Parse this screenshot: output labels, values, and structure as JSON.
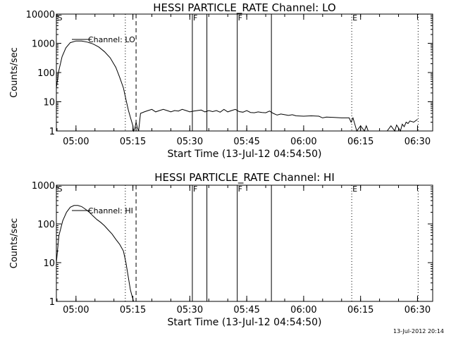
{
  "footer": {
    "timestamp": "13-Jul-2012 20:14"
  },
  "chart_data": [
    {
      "type": "line",
      "title": "HESSI PARTICLE_RATE Channel: LO",
      "xlabel": "Start Time (13-Jul-12 04:54:50)",
      "ylabel": "Counts/sec",
      "yscale": "log",
      "xlim": [
        "04:54:50",
        "06:34:00"
      ],
      "ylim": [
        1,
        10000
      ],
      "x_ticks": [
        "05:00",
        "05:15",
        "05:30",
        "05:45",
        "06:00",
        "06:15",
        "06:30"
      ],
      "y_ticks": [
        "1",
        "10",
        "100",
        "1000",
        "10000"
      ],
      "legend": {
        "position": "top-left",
        "entries": [
          "Channel: LO"
        ]
      },
      "markers": [
        {
          "time": "04:54:55",
          "label": "S",
          "style": "none"
        },
        {
          "time": "05:13:00",
          "label": "",
          "style": "dotted"
        },
        {
          "time": "05:15:50",
          "label": "",
          "style": "dashed"
        },
        {
          "time": "05:30:40",
          "label": "F",
          "style": "solid"
        },
        {
          "time": "05:34:30",
          "label": "",
          "style": "solid"
        },
        {
          "time": "05:42:30",
          "label": "F",
          "style": "solid"
        },
        {
          "time": "05:51:30",
          "label": "",
          "style": "solid"
        },
        {
          "time": "06:12:40",
          "label": "E",
          "style": "dotted"
        },
        {
          "time": "06:30:10",
          "label": "",
          "style": "dotted"
        }
      ],
      "series": [
        {
          "x": [
            "04:54:50",
            "04:55:30",
            "04:56:20",
            "04:57:20",
            "04:58:30",
            "05:00:00",
            "05:01:30",
            "05:03:00",
            "05:04:30",
            "05:06:00",
            "05:07:30",
            "05:09:00",
            "05:10:30",
            "05:11:30",
            "05:12:30",
            "05:13:10",
            "05:13:50",
            "05:14:30",
            "05:15:00",
            "05:15:10",
            "05:15:30",
            "05:15:50",
            "05:16:10",
            "05:16:30",
            "05:17:00",
            "05:18:00",
            "05:19:00",
            "05:20:00",
            "05:21:00",
            "05:22:00",
            "05:23:00",
            "05:24:00",
            "05:25:00",
            "05:26:00",
            "05:27:00",
            "05:28:00",
            "05:29:00",
            "05:30:00",
            "05:31:00",
            "05:32:00",
            "05:33:00",
            "05:34:00",
            "05:35:00",
            "05:36:00",
            "05:37:00",
            "05:38:00",
            "05:39:00",
            "05:40:00",
            "05:41:00",
            "05:42:00",
            "05:43:00",
            "05:44:00",
            "05:45:00",
            "05:46:00",
            "05:47:00",
            "05:48:00",
            "05:49:00",
            "05:50:00",
            "05:51:00",
            "05:52:00",
            "05:53:00",
            "05:54:00",
            "05:55:00",
            "05:56:00",
            "05:57:00",
            "05:58:00",
            "06:00:00",
            "06:02:00",
            "06:04:00",
            "06:05:00",
            "06:06:00",
            "06:08:00",
            "06:10:00",
            "06:11:00",
            "06:12:00",
            "06:12:30",
            "06:13:00",
            "06:14:00",
            "06:15:00",
            "06:16:00",
            "06:16:30",
            "06:17:00",
            "06:22:00",
            "06:23:00",
            "06:24:00",
            "06:24:30",
            "06:25:30",
            "06:26:00",
            "06:26:30",
            "06:27:00",
            "06:27:30",
            "06:28:00",
            "06:29:00",
            "06:30:00"
          ],
          "y": [
            30,
            120,
            350,
            700,
            1050,
            1200,
            1200,
            1100,
            950,
            750,
            520,
            320,
            150,
            70,
            30,
            12,
            5,
            2.5,
            1.5,
            1,
            1.2,
            2,
            1.3,
            1,
            4,
            4.5,
            5,
            5.5,
            4.5,
            5,
            5.5,
            5,
            4.5,
            5,
            4.8,
            5.5,
            5,
            4.5,
            4.8,
            5,
            5.2,
            4.5,
            5,
            4.6,
            5,
            4.4,
            5.5,
            4.5,
            5,
            5.5,
            4.6,
            4.4,
            5,
            4.3,
            4.2,
            4.5,
            4.3,
            4.2,
            4.8,
            4,
            3.5,
            3.8,
            3.6,
            3.4,
            3.6,
            3.3,
            3.2,
            3.3,
            3.2,
            2.8,
            3,
            2.9,
            2.8,
            2.8,
            2.8,
            2,
            2.8,
            1,
            1.5,
            1,
            1.5,
            1,
            1,
            1.5,
            1,
            1.6,
            1,
            1.7,
            1.4,
            2,
            1.8,
            2.2,
            2,
            2.5
          ]
        }
      ]
    },
    {
      "type": "line",
      "title": "HESSI PARTICLE_RATE Channel: HI",
      "xlabel": "Start Time (13-Jul-12 04:54:50)",
      "ylabel": "Counts/sec",
      "yscale": "log",
      "xlim": [
        "04:54:50",
        "06:34:00"
      ],
      "ylim": [
        1,
        1000
      ],
      "x_ticks": [
        "05:00",
        "05:15",
        "05:30",
        "05:45",
        "06:00",
        "06:15",
        "06:30"
      ],
      "y_ticks": [
        "1",
        "10",
        "100",
        "1000"
      ],
      "legend": {
        "position": "top-left",
        "entries": [
          "Channel: HI"
        ]
      },
      "markers": [
        {
          "time": "04:54:55",
          "label": "S",
          "style": "none"
        },
        {
          "time": "05:13:00",
          "label": "",
          "style": "dotted"
        },
        {
          "time": "05:15:50",
          "label": "",
          "style": "dashed"
        },
        {
          "time": "05:30:40",
          "label": "F",
          "style": "solid"
        },
        {
          "time": "05:34:30",
          "label": "",
          "style": "solid"
        },
        {
          "time": "05:42:30",
          "label": "F",
          "style": "solid"
        },
        {
          "time": "05:51:30",
          "label": "",
          "style": "solid"
        },
        {
          "time": "06:12:40",
          "label": "E",
          "style": "dotted"
        },
        {
          "time": "06:30:10",
          "label": "",
          "style": "dotted"
        }
      ],
      "series": [
        {
          "x": [
            "04:54:50",
            "04:55:30",
            "04:56:30",
            "04:57:30",
            "04:58:30",
            "04:59:30",
            "05:00:30",
            "05:01:30",
            "05:02:30",
            "05:03:30",
            "05:04:30",
            "05:05:30",
            "05:06:30",
            "05:07:30",
            "05:08:30",
            "05:09:30",
            "05:10:30",
            "05:11:30",
            "05:12:30",
            "05:13:10",
            "05:13:50",
            "05:14:20",
            "05:14:50",
            "05:15:10"
          ],
          "y": [
            10,
            50,
            120,
            200,
            270,
            300,
            300,
            280,
            240,
            200,
            160,
            130,
            110,
            90,
            70,
            55,
            40,
            30,
            20,
            10,
            4,
            2,
            1.3,
            1
          ]
        }
      ]
    }
  ]
}
